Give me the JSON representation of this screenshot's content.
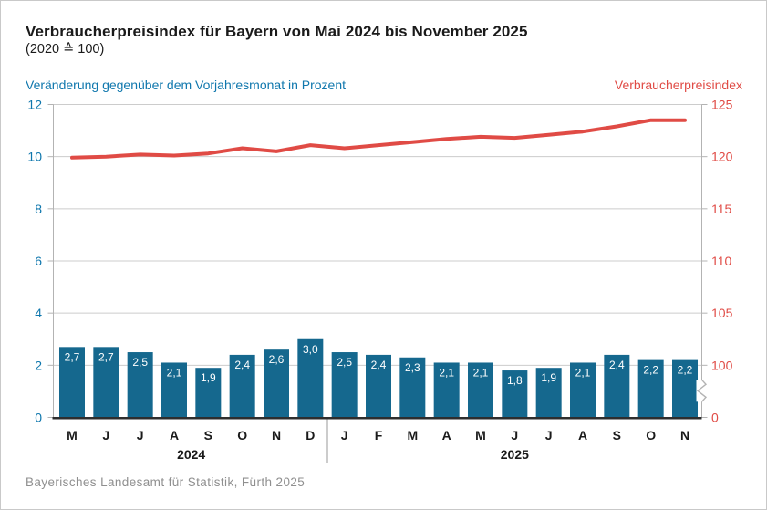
{
  "header": {
    "title": "Verbraucherpreisindex für Bayern von Mai 2024 bis November 2025",
    "subtitle": "(2020 ≙ 100)"
  },
  "axis_headers": {
    "left": "Veränderung gegenüber dem Vorjahresmonat in Prozent",
    "right": "Verbraucherpreisindex"
  },
  "footer": "Bayerisches Landesamt für Statistik, Fürth 2025",
  "colors": {
    "bar": "#15688e",
    "line": "#e04b45",
    "left_axis_text": "#0f77ad",
    "right_axis_text": "#e04b45",
    "grid": "#cccccc",
    "axis_frame": "#b3b3b3",
    "baseline": "#2e2e2e",
    "month_text": "#1a1a1a",
    "bar_label_text": "#ffffff",
    "divider": "#999999"
  },
  "chart_data": {
    "type": "bar+line combo",
    "categories": [
      "M",
      "J",
      "J",
      "A",
      "S",
      "O",
      "N",
      "D",
      "J",
      "F",
      "M",
      "A",
      "M",
      "J",
      "J",
      "A",
      "S",
      "O",
      "N"
    ],
    "year_groups": [
      {
        "label": "2024",
        "start_index": 0,
        "end_index": 7
      },
      {
        "label": "2025",
        "start_index": 8,
        "end_index": 18
      }
    ],
    "series": [
      {
        "name": "Veränderung gegenüber dem Vorjahresmonat in Prozent",
        "type": "bar",
        "axis": "left",
        "values": [
          2.7,
          2.7,
          2.5,
          2.1,
          1.9,
          2.4,
          2.6,
          3.0,
          2.5,
          2.4,
          2.3,
          2.1,
          2.1,
          1.8,
          1.9,
          2.1,
          2.4,
          2.2,
          2.2
        ],
        "labels": [
          "2,7",
          "2,7",
          "2,5",
          "2,1",
          "1,9",
          "2,4",
          "2,6",
          "3,0",
          "2,5",
          "2,4",
          "2,3",
          "2,1",
          "2,1",
          "1,8",
          "1,9",
          "2,1",
          "2,4",
          "2,2",
          "2,2"
        ]
      },
      {
        "name": "Verbraucherpreisindex",
        "type": "line",
        "axis": "right",
        "values": [
          119.9,
          120.0,
          120.2,
          120.1,
          120.3,
          120.8,
          120.5,
          121.1,
          120.8,
          121.1,
          121.4,
          121.7,
          121.9,
          121.8,
          122.1,
          122.4,
          122.9,
          123.5,
          123.5
        ]
      }
    ],
    "left_axis": {
      "ticks": [
        0,
        2,
        4,
        6,
        8,
        10,
        12
      ],
      "min": 0,
      "max": 12,
      "grid": true
    },
    "right_axis": {
      "ticks": [
        0,
        100,
        105,
        110,
        115,
        120,
        125
      ],
      "top_range": [
        100,
        125
      ],
      "axis_break_between": [
        0,
        100
      ],
      "grid": false
    },
    "legend_position": "none"
  }
}
